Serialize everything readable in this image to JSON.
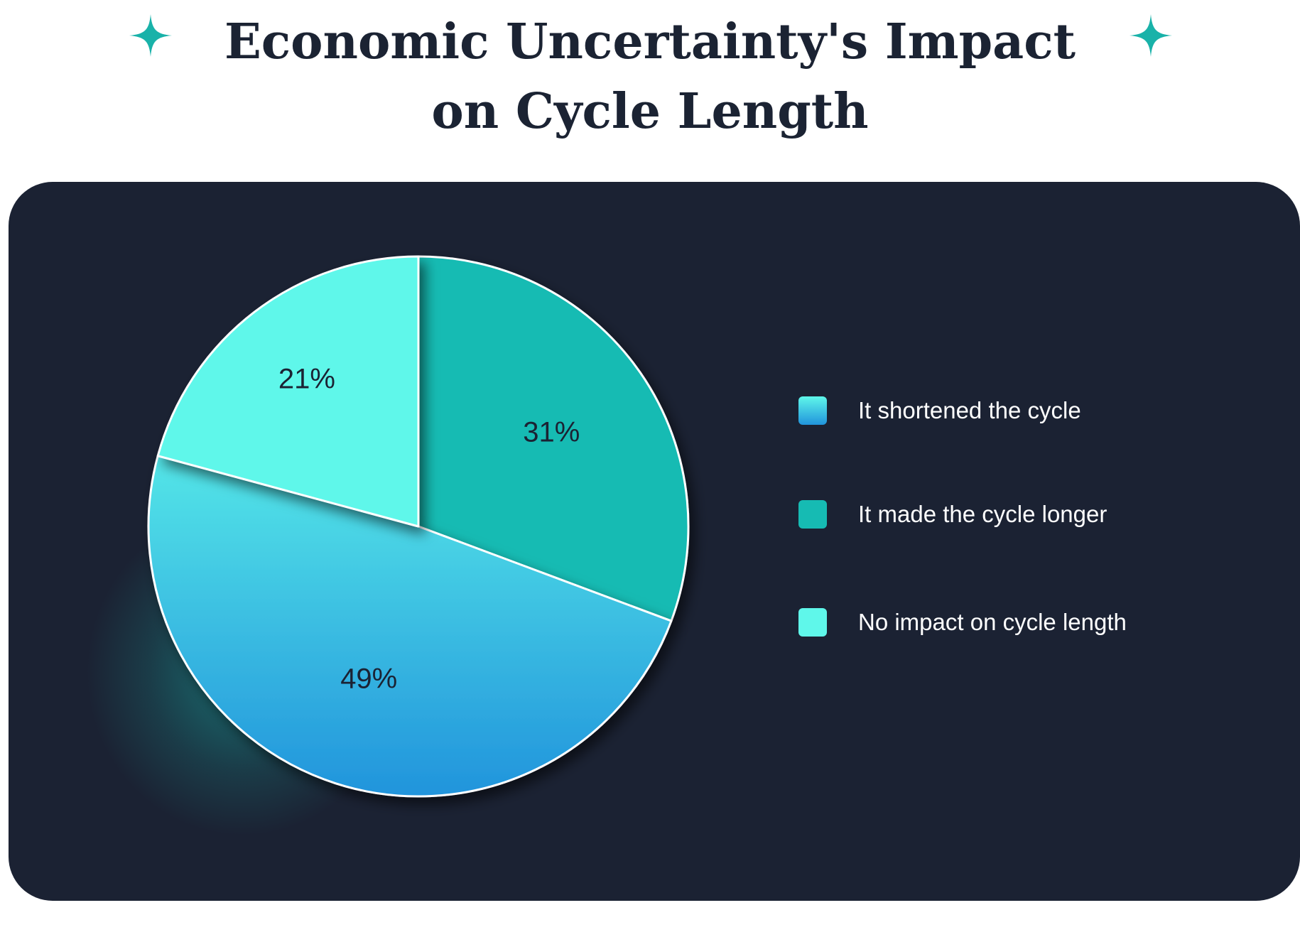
{
  "chart_data": {
    "type": "pie",
    "title": "Economic Uncertainty's Impact on Cycle Length",
    "slices": [
      {
        "label": "It shortened the cycle",
        "value": 49,
        "value_label": "49%",
        "color_top": "#5ff7ea",
        "color_bottom": "#2194dc"
      },
      {
        "label": "It made the cycle longer",
        "value": 31,
        "value_label": "31%",
        "color": "#16bbb3"
      },
      {
        "label": "No impact on cycle length",
        "value": 21,
        "value_label": "21%",
        "color": "#5ff7ea"
      }
    ],
    "legend_position": "right"
  },
  "colors": {
    "panel_background": "#1b2233",
    "title_text": "#1b2333",
    "sparkle": "#19b2a9",
    "slice_label_text": "#1b2233",
    "legend_text": "#ffffff",
    "slice_border": "#ffffff"
  },
  "icons": {
    "left_decoration": "sparkle-icon",
    "right_decoration": "sparkle-icon"
  }
}
